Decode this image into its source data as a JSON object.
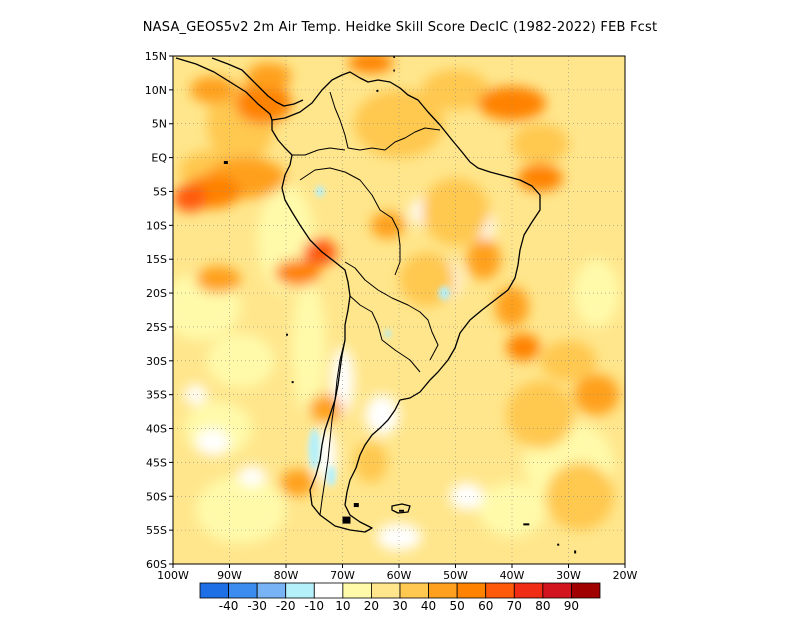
{
  "title": "NASA_GEOS5v2  2m Air Temp. Heidke Skill Score DecIC (1982-2022) FEB Fcst",
  "map": {
    "lon_range": [
      -100,
      -20
    ],
    "lat_range": [
      -60,
      15
    ],
    "lat_ticks": [
      "15N",
      "10N",
      "5N",
      "EQ",
      "5S",
      "10S",
      "15S",
      "20S",
      "25S",
      "30S",
      "35S",
      "40S",
      "45S",
      "50S",
      "55S",
      "60S"
    ],
    "lon_ticks": [
      "100W",
      "90W",
      "80W",
      "70W",
      "60W",
      "50W",
      "40W",
      "30W",
      "20W"
    ],
    "grid": "dotted"
  },
  "colorbar": {
    "colors": [
      "#1e6ee6",
      "#3c8cf0",
      "#78b4f5",
      "#b4f0fa",
      "#ffffff",
      "#fffaaa",
      "#ffe68c",
      "#ffc850",
      "#ffa01e",
      "#ff8200",
      "#ff5a0a",
      "#f02d14",
      "#d2141e",
      "#a00000"
    ],
    "labels": [
      "-40",
      "-30",
      "-20",
      "-10",
      "10",
      "20",
      "30",
      "40",
      "50",
      "60",
      "70",
      "80",
      "90"
    ]
  },
  "field_palette": {
    "white": "#ffffff",
    "light_blue": "#b4f0fa",
    "pale_yellow": "#fffaaa",
    "yellow": "#ffe68c",
    "light_orange": "#ffc850",
    "orange": "#ffa01e",
    "dark_orange": "#ff8200",
    "red_orange": "#ff5a0a"
  }
}
